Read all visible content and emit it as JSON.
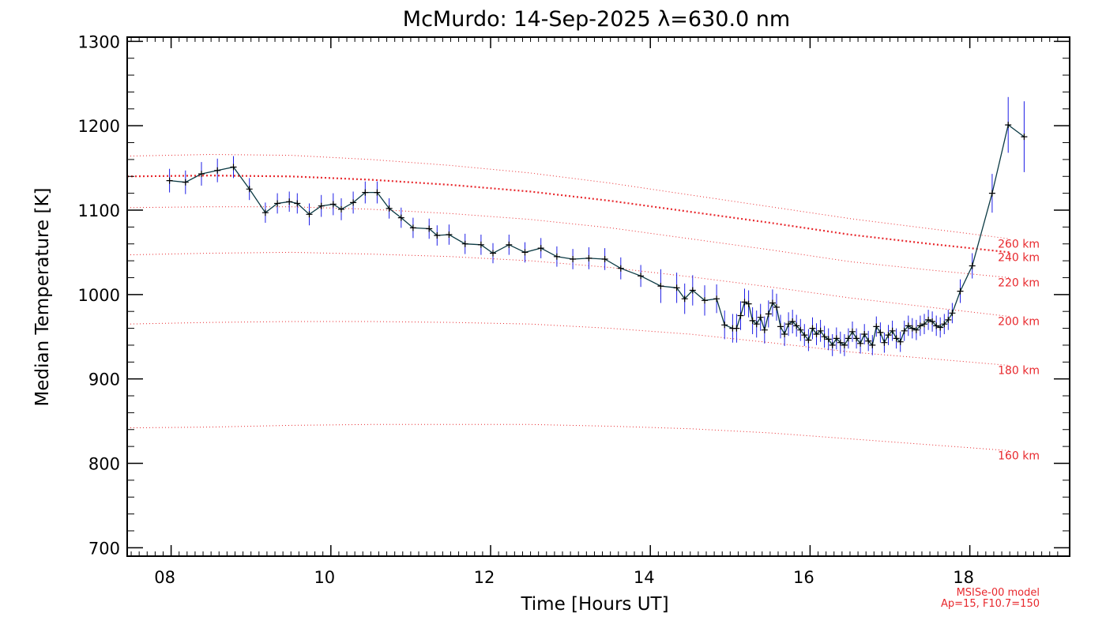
{
  "chart_data": {
    "type": "line",
    "title": "McMurdo: 14-Sep-2025 λ=630.0 nm",
    "xlabel": "Time [Hours UT]",
    "ylabel": "Median Temperature [K]",
    "xlim": [
      7.45,
      19.25
    ],
    "ylim": [
      690,
      1305
    ],
    "x_ticks": [
      8,
      10,
      12,
      14,
      16,
      18
    ],
    "x_tick_labels": [
      "08",
      "10",
      "12",
      "14",
      "16",
      "18"
    ],
    "y_ticks": [
      700,
      800,
      900,
      1000,
      1100,
      1200,
      1300
    ],
    "y_tick_labels": [
      "700",
      "800",
      "900",
      "1000",
      "1100",
      "1200",
      "1300"
    ],
    "grid": false,
    "colors": {
      "measurement_line": "#0b3a44",
      "error_bars": "#1e1ee6",
      "markers": "#000000",
      "model_lines": "#e8282d"
    },
    "measured": {
      "x": [
        7.98,
        8.18,
        8.38,
        8.58,
        8.78,
        8.98,
        9.18,
        9.33,
        9.48,
        9.58,
        9.73,
        9.88,
        10.03,
        10.13,
        10.28,
        10.43,
        10.58,
        10.73,
        10.88,
        11.03,
        11.23,
        11.33,
        11.48,
        11.68,
        11.88,
        12.03,
        12.23,
        12.43,
        12.63,
        12.83,
        13.03,
        13.23,
        13.43,
        13.63,
        13.88,
        14.13,
        14.33,
        14.43,
        14.53,
        14.68,
        14.83,
        14.93,
        15.03,
        15.08,
        15.13,
        15.18,
        15.23,
        15.28,
        15.33,
        15.38,
        15.43,
        15.48,
        15.53,
        15.58,
        15.63,
        15.68,
        15.73,
        15.78,
        15.83,
        15.88,
        15.93,
        15.98,
        16.03,
        16.08,
        16.13,
        16.18,
        16.23,
        16.28,
        16.33,
        16.38,
        16.43,
        16.48,
        16.53,
        16.58,
        16.63,
        16.68,
        16.73,
        16.78,
        16.83,
        16.88,
        16.93,
        16.98,
        17.03,
        17.08,
        17.13,
        17.18,
        17.23,
        17.28,
        17.33,
        17.38,
        17.43,
        17.48,
        17.53,
        17.58,
        17.63,
        17.68,
        17.73,
        17.78,
        17.88,
        18.03,
        18.28,
        18.48,
        18.68
      ],
      "y": [
        1135,
        1133,
        1143,
        1147,
        1151,
        1125,
        1097,
        1108,
        1110,
        1108,
        1095,
        1105,
        1107,
        1101,
        1109,
        1121,
        1121,
        1102,
        1091,
        1079,
        1078,
        1070,
        1071,
        1060,
        1059,
        1049,
        1059,
        1050,
        1055,
        1045,
        1042,
        1043,
        1042,
        1031,
        1022,
        1010,
        1008,
        995,
        1005,
        993,
        995,
        964,
        960,
        960,
        975,
        991,
        989,
        969,
        965,
        973,
        958,
        977,
        990,
        985,
        962,
        953,
        965,
        968,
        963,
        958,
        952,
        946,
        960,
        953,
        957,
        950,
        947,
        940,
        948,
        943,
        940,
        948,
        956,
        948,
        942,
        953,
        945,
        940,
        962,
        955,
        943,
        952,
        957,
        948,
        944,
        957,
        963,
        960,
        958,
        963,
        965,
        970,
        968,
        963,
        961,
        965,
        970,
        978,
        1004,
        1034,
        1120,
        1201,
        1187
      ],
      "error": [
        14,
        14,
        14,
        14,
        13,
        13,
        12,
        12,
        12,
        12,
        13,
        13,
        13,
        13,
        13,
        13,
        13,
        12,
        12,
        12,
        12,
        12,
        12,
        12,
        12,
        12,
        12,
        12,
        12,
        12,
        12,
        13,
        13,
        13,
        13,
        20,
        18,
        18,
        18,
        18,
        17,
        17,
        17,
        17,
        17,
        16,
        16,
        16,
        16,
        16,
        16,
        16,
        16,
        16,
        14,
        14,
        14,
        14,
        13,
        13,
        13,
        13,
        13,
        13,
        13,
        13,
        13,
        13,
        13,
        13,
        13,
        12,
        12,
        12,
        12,
        12,
        12,
        12,
        12,
        12,
        12,
        12,
        12,
        12,
        12,
        12,
        12,
        12,
        12,
        12,
        12,
        12,
        12,
        12,
        12,
        12,
        12,
        12,
        14,
        15,
        23,
        33,
        42
      ]
    },
    "model_curves": [
      {
        "label": "160 km",
        "x": [
          7.45,
          8.5,
          9.5,
          10.5,
          11.5,
          12.5,
          13.5,
          14.5,
          15.5,
          16.5,
          17.5,
          18.5
        ],
        "y": [
          842,
          843,
          845,
          846,
          846,
          846,
          844,
          841,
          836,
          829,
          822,
          815
        ]
      },
      {
        "label": "180 km",
        "x": [
          7.45,
          8.5,
          9.5,
          10.5,
          11.5,
          12.5,
          13.5,
          14.5,
          15.5,
          16.5,
          17.5,
          18.5
        ],
        "y": [
          965,
          967,
          968,
          968,
          967,
          965,
          960,
          953,
          943,
          932,
          924,
          916
        ]
      },
      {
        "label": "200 km",
        "x": [
          7.45,
          8.5,
          9.5,
          10.5,
          11.5,
          12.5,
          13.5,
          14.5,
          15.5,
          16.5,
          17.5,
          18.5
        ],
        "y": [
          1047,
          1049,
          1050,
          1048,
          1045,
          1040,
          1032,
          1021,
          1009,
          996,
          985,
          974
        ]
      },
      {
        "label": "220 km",
        "x": [
          7.45,
          8.5,
          9.5,
          10.5,
          11.5,
          12.5,
          13.5,
          14.5,
          15.5,
          16.5,
          17.5,
          18.5
        ],
        "y": [
          1103,
          1104,
          1104,
          1101,
          1096,
          1089,
          1079,
          1066,
          1053,
          1039,
          1029,
          1020
        ]
      },
      {
        "label": "240 km",
        "x": [
          7.45,
          8.5,
          9.5,
          10.5,
          11.5,
          12.5,
          13.5,
          14.5,
          15.5,
          16.5,
          17.5,
          18.5
        ],
        "y": [
          1140,
          1141,
          1140,
          1136,
          1130,
          1122,
          1111,
          1098,
          1085,
          1071,
          1060,
          1050
        ]
      },
      {
        "label": "260 km",
        "x": [
          7.45,
          8.5,
          9.5,
          10.5,
          11.5,
          12.5,
          13.5,
          14.5,
          15.5,
          16.5,
          17.5,
          18.5
        ],
        "y": [
          1164,
          1166,
          1165,
          1160,
          1153,
          1144,
          1132,
          1118,
          1104,
          1090,
          1078,
          1066
        ]
      }
    ],
    "highlighted_model": "240 km",
    "annotation": [
      "MSISe-00 model",
      "Ap=15, F10.7=150"
    ]
  }
}
